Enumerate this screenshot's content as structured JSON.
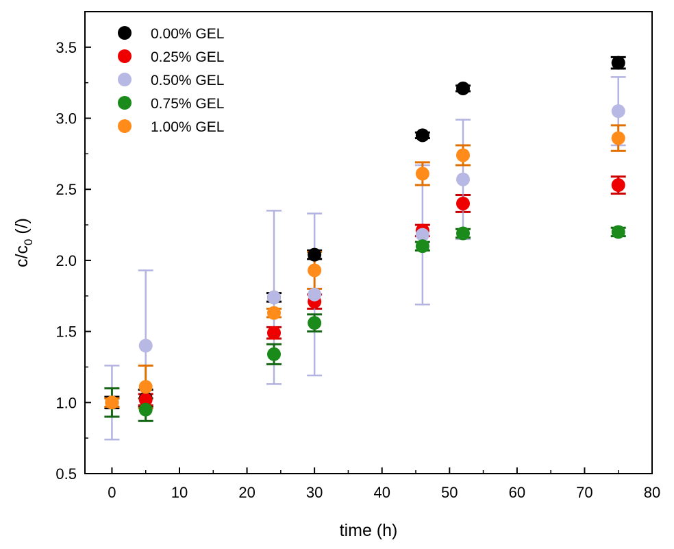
{
  "chart_data": {
    "type": "scatter",
    "xlabel": "time (h)",
    "ylabel_main": "c/c",
    "ylabel_sub": "0",
    "ylabel_unit": " (/)",
    "xlim": [
      -4,
      80
    ],
    "ylim": [
      0.5,
      3.75
    ],
    "xticks": [
      0,
      10,
      20,
      30,
      40,
      50,
      60,
      70,
      80
    ],
    "yticks": [
      0.5,
      1.0,
      1.5,
      2.0,
      2.5,
      3.0,
      3.5
    ],
    "xtick_labels": [
      "0",
      "10",
      "20",
      "30",
      "40",
      "50",
      "60",
      "70",
      "80"
    ],
    "ytick_labels": [
      "0.5",
      "1.0",
      "1.5",
      "2.0",
      "2.5",
      "3.0",
      "3.5"
    ],
    "grid": false,
    "legend_position": "top-left",
    "series": [
      {
        "name": "0.00% GEL",
        "color": "#000000",
        "errorbar_color": "#000000",
        "x": [
          0,
          5,
          24,
          30,
          46,
          52,
          75
        ],
        "y": [
          1.0,
          1.03,
          1.74,
          2.04,
          2.88,
          3.21,
          3.39
        ],
        "err": [
          0.04,
          0.06,
          0.03,
          0.03,
          0.02,
          0.02,
          0.04
        ]
      },
      {
        "name": "0.25% GEL",
        "color": "#ee0000",
        "errorbar_color": "#cc0000",
        "x": [
          0,
          5,
          24,
          30,
          46,
          52,
          75
        ],
        "y": [
          1.0,
          1.02,
          1.49,
          1.71,
          2.21,
          2.4,
          2.53
        ],
        "err": [
          0.03,
          0.04,
          0.04,
          0.05,
          0.04,
          0.06,
          0.06
        ]
      },
      {
        "name": "0.50% GEL",
        "color": "#b8b8e4",
        "errorbar_color": "#9a9ad8",
        "x": [
          0,
          5,
          24,
          30,
          46,
          52,
          75
        ],
        "y": [
          1.0,
          1.4,
          1.74,
          1.76,
          2.18,
          2.57,
          3.05
        ],
        "err": [
          0.26,
          0.53,
          0.61,
          0.57,
          0.49,
          0.42,
          0.24
        ]
      },
      {
        "name": "0.75% GEL",
        "color": "#1a8a1a",
        "errorbar_color": "#146614",
        "x": [
          0,
          5,
          24,
          30,
          46,
          52,
          75
        ],
        "y": [
          1.0,
          0.95,
          1.34,
          1.56,
          2.1,
          2.19,
          2.2
        ],
        "err": [
          0.1,
          0.08,
          0.07,
          0.06,
          0.03,
          0.03,
          0.03
        ]
      },
      {
        "name": "1.00% GEL",
        "color": "#ff8c1a",
        "errorbar_color": "#e07000",
        "x": [
          0,
          5,
          24,
          30,
          46,
          52,
          75
        ],
        "y": [
          1.0,
          1.11,
          1.63,
          1.93,
          2.61,
          2.74,
          2.86
        ],
        "err": [
          0.03,
          0.15,
          0.03,
          0.13,
          0.08,
          0.07,
          0.09
        ]
      }
    ]
  }
}
